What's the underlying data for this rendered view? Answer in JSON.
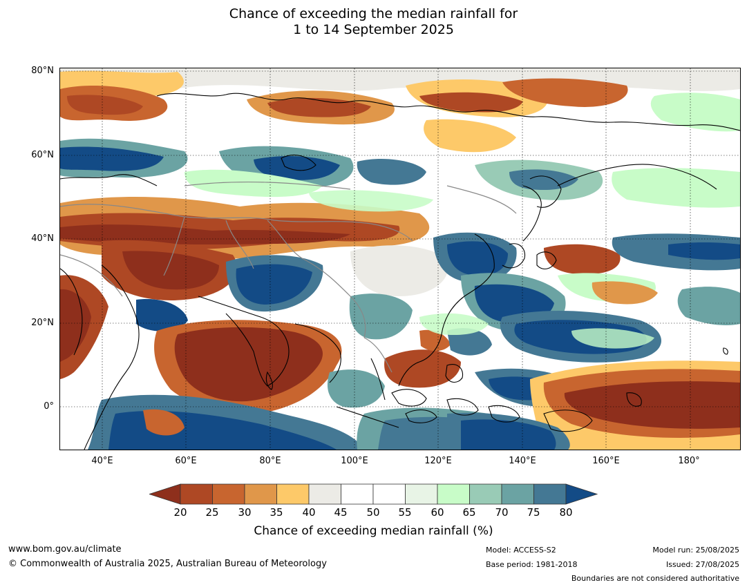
{
  "title": {
    "line1": "Chance of exceeding the median rainfall for",
    "line2": "1 to 14 September 2025"
  },
  "map": {
    "lat_labels": [
      "80°N",
      "60°N",
      "40°N",
      "20°N",
      "0°"
    ],
    "lon_labels": [
      "40°E",
      "60°E",
      "80°E",
      "100°E",
      "120°E",
      "140°E",
      "160°E",
      "180°"
    ],
    "colors": {
      "c20": "#8e2f1c",
      "c25": "#ae4824",
      "c30": "#c8652f",
      "c35": "#e0974a",
      "c40": "#fdc969",
      "c45": "#ecebe6",
      "c50": "#ffffff",
      "c55": "#ffffff",
      "c60": "#e8f4e6",
      "c65": "#c8fcc8",
      "c70": "#99cbb6",
      "c75": "#6ba3a3",
      "c80": "#447894",
      "c85": "#134b86",
      "coast": "#000000",
      "borders": "#888888"
    }
  },
  "colorbar": {
    "ticks": [
      "20",
      "25",
      "30",
      "35",
      "40",
      "45",
      "50",
      "55",
      "60",
      "65",
      "70",
      "75",
      "80"
    ],
    "title": "Chance of exceeding median rainfall (%)"
  },
  "footer": {
    "website": "www.bom.gov.au/climate",
    "copyright": "© Commonwealth of Australia 2025, Australian Bureau of Meteorology",
    "model": "Model: ACCESS-S2",
    "base_period": "Base period: 1981-2018",
    "model_run": "Model run: 25/08/2025",
    "issued": "Issued: 27/08/2025",
    "disclaimer": "Boundaries are not considered authoritative"
  }
}
